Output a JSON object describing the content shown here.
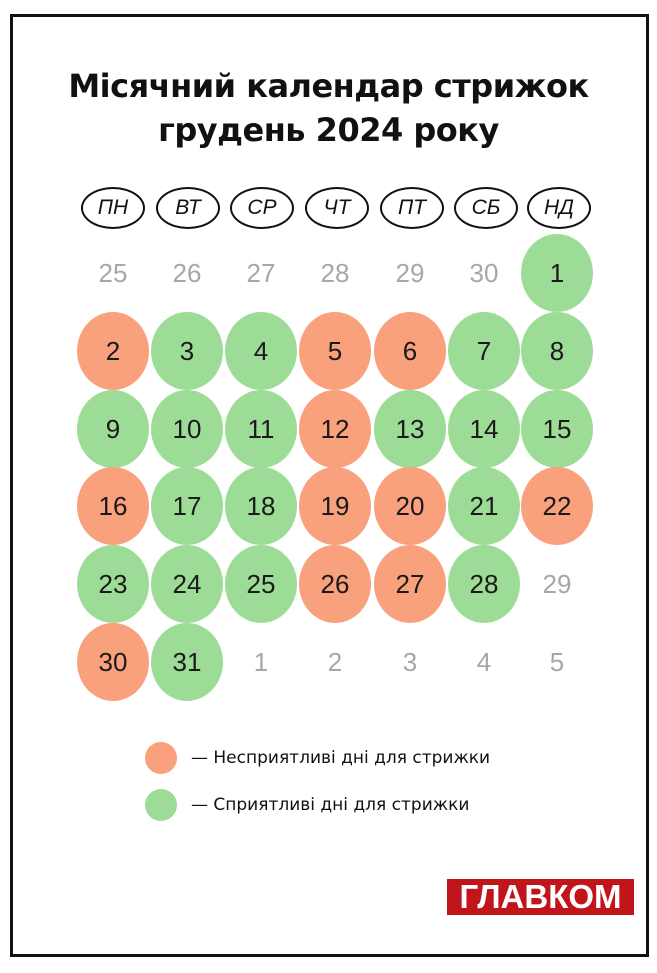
{
  "title": {
    "line1": "Місячний календар стрижок",
    "line2": "грудень 2024 року"
  },
  "weekdays": [
    "ПН",
    "ВТ",
    "СР",
    "ЧТ",
    "ПТ",
    "СБ",
    "НД"
  ],
  "colors": {
    "favorable": "#9ddc96",
    "unfavorable": "#f9a07c",
    "muted_text": "#a7a7a7",
    "logo_bg": "#c1141b"
  },
  "weeks": [
    [
      {
        "day": "25",
        "status": "muted"
      },
      {
        "day": "26",
        "status": "muted"
      },
      {
        "day": "27",
        "status": "muted"
      },
      {
        "day": "28",
        "status": "muted"
      },
      {
        "day": "29",
        "status": "muted"
      },
      {
        "day": "30",
        "status": "muted"
      },
      {
        "day": "1",
        "status": "good"
      }
    ],
    [
      {
        "day": "2",
        "status": "bad"
      },
      {
        "day": "3",
        "status": "good"
      },
      {
        "day": "4",
        "status": "good"
      },
      {
        "day": "5",
        "status": "bad"
      },
      {
        "day": "6",
        "status": "bad"
      },
      {
        "day": "7",
        "status": "good"
      },
      {
        "day": "8",
        "status": "good"
      }
    ],
    [
      {
        "day": "9",
        "status": "good"
      },
      {
        "day": "10",
        "status": "good"
      },
      {
        "day": "11",
        "status": "good"
      },
      {
        "day": "12",
        "status": "bad"
      },
      {
        "day": "13",
        "status": "good"
      },
      {
        "day": "14",
        "status": "good"
      },
      {
        "day": "15",
        "status": "good"
      }
    ],
    [
      {
        "day": "16",
        "status": "bad"
      },
      {
        "day": "17",
        "status": "good"
      },
      {
        "day": "18",
        "status": "good"
      },
      {
        "day": "19",
        "status": "bad"
      },
      {
        "day": "20",
        "status": "bad"
      },
      {
        "day": "21",
        "status": "good"
      },
      {
        "day": "22",
        "status": "bad"
      }
    ],
    [
      {
        "day": "23",
        "status": "good"
      },
      {
        "day": "24",
        "status": "good"
      },
      {
        "day": "25",
        "status": "good"
      },
      {
        "day": "26",
        "status": "bad"
      },
      {
        "day": "27",
        "status": "bad"
      },
      {
        "day": "28",
        "status": "good"
      },
      {
        "day": "29",
        "status": "muted"
      }
    ],
    [
      {
        "day": "30",
        "status": "bad"
      },
      {
        "day": "31",
        "status": "good"
      },
      {
        "day": "1",
        "status": "muted"
      },
      {
        "day": "2",
        "status": "muted"
      },
      {
        "day": "3",
        "status": "muted"
      },
      {
        "day": "4",
        "status": "muted"
      },
      {
        "day": "5",
        "status": "muted"
      }
    ]
  ],
  "legend": {
    "unfavorable": "—  Несприятливі дні для стрижки",
    "favorable": "—  Сприятливі дні для стрижки"
  },
  "logo": {
    "text": "ГЛАВКОМ"
  }
}
